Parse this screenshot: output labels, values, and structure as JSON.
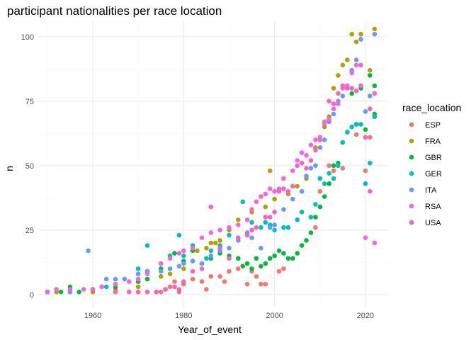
{
  "chart_data": {
    "type": "scatter",
    "title": "participant nationalities per race location",
    "xlabel": "Year_of_event",
    "ylabel": "n",
    "xlim": [
      1948,
      2025
    ],
    "ylim": [
      -5,
      106
    ],
    "xticks": [
      1960,
      1980,
      2000,
      2020
    ],
    "yticks": [
      0,
      25,
      50,
      75,
      100
    ],
    "grid": true,
    "legend": {
      "title": "race_location",
      "placement": "right"
    },
    "series": [
      {
        "name": "ESP",
        "color": "#F8766D",
        "points": [
          [
            1960,
            1
          ],
          [
            1965,
            1
          ],
          [
            1970,
            1
          ],
          [
            1974,
            1
          ],
          [
            1975,
            1
          ],
          [
            1976,
            2
          ],
          [
            1977,
            3
          ],
          [
            1978,
            5
          ],
          [
            1979,
            1
          ],
          [
            1980,
            4
          ],
          [
            1982,
            6
          ],
          [
            1984,
            5
          ],
          [
            1985,
            2
          ],
          [
            1986,
            7
          ],
          [
            1988,
            7
          ],
          [
            1989,
            5
          ],
          [
            1990,
            9
          ],
          [
            1992,
            10
          ],
          [
            1994,
            4
          ],
          [
            1995,
            9
          ],
          [
            1996,
            7
          ],
          [
            1997,
            4
          ],
          [
            1998,
            4
          ],
          [
            2001,
            9
          ],
          [
            2002,
            10
          ],
          [
            2009,
            26
          ],
          [
            2010,
            40
          ],
          [
            2012,
            50
          ],
          [
            2013,
            48
          ],
          [
            2015,
            49
          ],
          [
            2016,
            63
          ],
          [
            2018,
            62
          ],
          [
            2020,
            48
          ],
          [
            2020,
            61
          ],
          [
            2021,
            61
          ],
          [
            2022,
            69
          ]
        ]
      },
      {
        "name": "FRA",
        "color": "#B79F00",
        "points": [
          [
            1950,
            1
          ],
          [
            1952,
            1
          ],
          [
            1955,
            1
          ],
          [
            1960,
            1
          ],
          [
            1965,
            2
          ],
          [
            1970,
            3
          ],
          [
            1975,
            7
          ],
          [
            1977,
            8
          ],
          [
            1980,
            10
          ],
          [
            1982,
            13
          ],
          [
            1983,
            17
          ],
          [
            1985,
            18
          ],
          [
            1986,
            20
          ],
          [
            1987,
            20
          ],
          [
            1988,
            21
          ],
          [
            1990,
            25
          ],
          [
            1992,
            29
          ],
          [
            1995,
            32
          ],
          [
            1998,
            34
          ],
          [
            1999,
            48
          ],
          [
            2000,
            37
          ],
          [
            2003,
            39
          ],
          [
            2005,
            42
          ],
          [
            2007,
            45
          ],
          [
            2008,
            52
          ],
          [
            2009,
            57
          ],
          [
            2010,
            61
          ],
          [
            2011,
            65
          ],
          [
            2012,
            69
          ],
          [
            2013,
            80
          ],
          [
            2014,
            85
          ],
          [
            2015,
            89
          ],
          [
            2016,
            91
          ],
          [
            2017,
            101
          ],
          [
            2018,
            98
          ],
          [
            2019,
            101
          ],
          [
            2021,
            87
          ],
          [
            2022,
            103
          ]
        ]
      },
      {
        "name": "GBR",
        "color": "#00BA38",
        "points": [
          [
            1950,
            1
          ],
          [
            1953,
            1
          ],
          [
            1955,
            3
          ],
          [
            1957,
            1
          ],
          [
            1960,
            2
          ],
          [
            1965,
            3
          ],
          [
            1970,
            5
          ],
          [
            1972,
            6
          ],
          [
            1975,
            10
          ],
          [
            1977,
            15
          ],
          [
            1978,
            16
          ],
          [
            1980,
            13
          ],
          [
            1982,
            17
          ],
          [
            1984,
            12
          ],
          [
            1986,
            14
          ],
          [
            1988,
            16
          ],
          [
            1990,
            15
          ],
          [
            1992,
            14
          ],
          [
            1993,
            11
          ],
          [
            1994,
            12
          ],
          [
            1995,
            10
          ],
          [
            1996,
            14
          ],
          [
            1997,
            11
          ],
          [
            1998,
            12
          ],
          [
            1999,
            14
          ],
          [
            2000,
            15
          ],
          [
            2001,
            17
          ],
          [
            2002,
            16
          ],
          [
            2003,
            14
          ],
          [
            2004,
            14
          ],
          [
            2005,
            16
          ],
          [
            2006,
            19
          ],
          [
            2007,
            21
          ],
          [
            2008,
            24
          ],
          [
            2009,
            30
          ],
          [
            2010,
            34
          ],
          [
            2011,
            38
          ],
          [
            2012,
            43
          ],
          [
            2013,
            50
          ],
          [
            2014,
            51
          ],
          [
            2015,
            59
          ],
          [
            2016,
            63
          ],
          [
            2017,
            78
          ],
          [
            2018,
            66
          ],
          [
            2019,
            80
          ],
          [
            2020,
            64
          ],
          [
            2021,
            85
          ],
          [
            2022,
            81
          ],
          [
            2022,
            70
          ]
        ]
      },
      {
        "name": "GER",
        "color": "#00BFC4",
        "points": [
          [
            1950,
            1
          ],
          [
            1955,
            2
          ],
          [
            1960,
            2
          ],
          [
            1963,
            3
          ],
          [
            1965,
            4
          ],
          [
            1970,
            10
          ],
          [
            1972,
            19
          ],
          [
            1975,
            12
          ],
          [
            1977,
            15
          ],
          [
            1979,
            23
          ],
          [
            1980,
            15
          ],
          [
            1982,
            19
          ],
          [
            1985,
            14
          ],
          [
            1986,
            17
          ],
          [
            1988,
            19
          ],
          [
            1990,
            23
          ],
          [
            1992,
            22
          ],
          [
            1993,
            36
          ],
          [
            1995,
            28
          ],
          [
            1997,
            26
          ],
          [
            1998,
            28
          ],
          [
            1999,
            27
          ],
          [
            2000,
            25
          ],
          [
            2002,
            26
          ],
          [
            2003,
            26
          ],
          [
            2005,
            29
          ],
          [
            2006,
            32
          ],
          [
            2008,
            30
          ],
          [
            2009,
            35
          ],
          [
            2010,
            45
          ],
          [
            2011,
            43
          ],
          [
            2012,
            47
          ],
          [
            2013,
            45
          ],
          [
            2014,
            50
          ],
          [
            2015,
            59
          ],
          [
            2016,
            63
          ],
          [
            2017,
            65
          ],
          [
            2018,
            66
          ],
          [
            2019,
            66
          ],
          [
            2020,
            43
          ],
          [
            2021,
            51
          ],
          [
            2022,
            69
          ]
        ]
      },
      {
        "name": "ITA",
        "color": "#619CFF",
        "points": [
          [
            1950,
            1
          ],
          [
            1955,
            1
          ],
          [
            1959,
            17
          ],
          [
            1962,
            3
          ],
          [
            1963,
            6
          ],
          [
            1965,
            6
          ],
          [
            1967,
            6
          ],
          [
            1970,
            8
          ],
          [
            1972,
            9
          ],
          [
            1975,
            9
          ],
          [
            1977,
            10
          ],
          [
            1979,
            11
          ],
          [
            1980,
            12
          ],
          [
            1982,
            13
          ],
          [
            1984,
            12
          ],
          [
            1986,
            15
          ],
          [
            1988,
            17
          ],
          [
            1990,
            18
          ],
          [
            1992,
            21
          ],
          [
            1994,
            24
          ],
          [
            1995,
            22
          ],
          [
            1997,
            18
          ],
          [
            1999,
            26
          ],
          [
            2000,
            27
          ],
          [
            2002,
            33
          ],
          [
            2004,
            37
          ],
          [
            2006,
            40
          ],
          [
            2007,
            46
          ],
          [
            2008,
            49
          ],
          [
            2009,
            50
          ],
          [
            2010,
            57
          ],
          [
            2011,
            60
          ],
          [
            2012,
            67
          ],
          [
            2013,
            70
          ],
          [
            2014,
            75
          ],
          [
            2015,
            77
          ],
          [
            2016,
            81
          ],
          [
            2017,
            87
          ],
          [
            2018,
            91
          ],
          [
            2019,
            99
          ],
          [
            2020,
            71
          ],
          [
            2021,
            77
          ],
          [
            2022,
            101
          ]
        ]
      },
      {
        "name": "RSA",
        "color": "#F564E3",
        "points": [
          [
            1950,
            1
          ],
          [
            1952,
            2
          ],
          [
            1955,
            2
          ],
          [
            1958,
            2
          ],
          [
            1960,
            2
          ],
          [
            1962,
            3
          ],
          [
            1965,
            4
          ],
          [
            1968,
            5
          ],
          [
            1970,
            6
          ],
          [
            1972,
            8
          ],
          [
            1975,
            12
          ],
          [
            1977,
            14
          ],
          [
            1979,
            16
          ],
          [
            1980,
            17
          ],
          [
            1982,
            18
          ],
          [
            1984,
            22
          ],
          [
            1986,
            24
          ],
          [
            1988,
            25
          ],
          [
            1990,
            26
          ],
          [
            1992,
            27
          ],
          [
            1994,
            29
          ],
          [
            1995,
            33
          ],
          [
            1996,
            36
          ],
          [
            1997,
            38
          ],
          [
            1998,
            39
          ],
          [
            1999,
            41
          ],
          [
            2000,
            40
          ],
          [
            2001,
            41
          ],
          [
            2002,
            45
          ],
          [
            2004,
            48
          ],
          [
            2005,
            52
          ],
          [
            2006,
            55
          ],
          [
            2007,
            54
          ],
          [
            2008,
            58
          ],
          [
            2009,
            60
          ],
          [
            2010,
            61
          ],
          [
            2011,
            66
          ],
          [
            2012,
            68
          ],
          [
            2013,
            72
          ],
          [
            2014,
            74
          ],
          [
            2015,
            80
          ],
          [
            2016,
            81
          ],
          [
            2017,
            86
          ],
          [
            2018,
            89
          ],
          [
            2019,
            89
          ],
          [
            2020,
            22
          ],
          [
            2021,
            40
          ],
          [
            2022,
            20
          ]
        ]
      },
      {
        "name": "USA",
        "color": "#FF61C3",
        "points": [
          [
            1965,
            1
          ],
          [
            1968,
            1
          ],
          [
            1970,
            1
          ],
          [
            1972,
            1
          ],
          [
            1974,
            1
          ],
          [
            1976,
            2
          ],
          [
            1978,
            3
          ],
          [
            1979,
            2
          ],
          [
            1980,
            5
          ],
          [
            1982,
            9
          ],
          [
            1984,
            10
          ],
          [
            1986,
            34
          ],
          [
            1988,
            18
          ],
          [
            1990,
            14
          ],
          [
            1992,
            22
          ],
          [
            1994,
            23
          ],
          [
            1995,
            25
          ],
          [
            1996,
            26
          ],
          [
            1998,
            30
          ],
          [
            1999,
            30
          ],
          [
            2000,
            32
          ],
          [
            2001,
            40
          ],
          [
            2002,
            41
          ],
          [
            2003,
            40
          ],
          [
            2004,
            42
          ],
          [
            2005,
            50
          ],
          [
            2006,
            51
          ],
          [
            2007,
            49
          ],
          [
            2008,
            52
          ],
          [
            2009,
            56
          ],
          [
            2010,
            60
          ],
          [
            2011,
            67
          ],
          [
            2012,
            75
          ],
          [
            2013,
            74
          ],
          [
            2014,
            78
          ],
          [
            2015,
            81
          ],
          [
            2016,
            80
          ],
          [
            2017,
            80
          ],
          [
            2018,
            79
          ],
          [
            2019,
            81
          ],
          [
            2020,
            61
          ],
          [
            2021,
            72
          ],
          [
            2022,
            78
          ]
        ]
      }
    ]
  }
}
